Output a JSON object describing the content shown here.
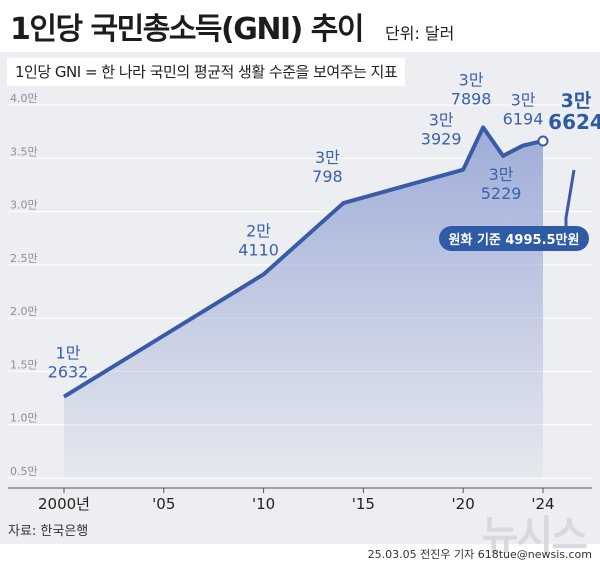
{
  "header": {
    "title": "1인당 국민총소득(GNI) 추이",
    "unit": "단위: 달러"
  },
  "subtitle": "1인당 GNI = 한 나라 국민의 평균적 생활 수준을 보여주는 지표",
  "footer": {
    "source": "자료: 한국은행",
    "credit": "25.03.05 전진우 기자 618tue@newsis.com",
    "logo": "뉴시스"
  },
  "colors": {
    "line": "#3a5ba8",
    "label": "#3a62b0",
    "highlight": "#2f5aa6",
    "panel": "#edeef1",
    "area_top": "#9aa9d6"
  },
  "chart_data": {
    "type": "area",
    "title": "1인당 국민총소득(GNI) 추이",
    "ylabel": "단위: 달러",
    "ylim": [
      5000,
      40000
    ],
    "yticks": [
      "4.0만",
      "3.5만",
      "3.0만",
      "2.5만",
      "2.0만",
      "1.5만",
      "1.0만",
      "0.5만"
    ],
    "ytick_values": [
      40000,
      35000,
      30000,
      25000,
      20000,
      15000,
      10000,
      5000
    ],
    "xticks": [
      {
        "x": 2000,
        "label": "2000년"
      },
      {
        "x": 2005,
        "label": "'05"
      },
      {
        "x": 2010,
        "label": "'10"
      },
      {
        "x": 2015,
        "label": "'15"
      },
      {
        "x": 2020,
        "label": "'20"
      },
      {
        "x": 2024,
        "label": "'24"
      }
    ],
    "series": [
      {
        "name": "1인당 GNI",
        "x": [
          2000,
          2010,
          2014,
          2020,
          2021,
          2022,
          2023,
          2024
        ],
        "values": [
          12632,
          24110,
          30798,
          33929,
          37898,
          35229,
          36194,
          36624
        ]
      }
    ],
    "annotations": [
      {
        "x": 2000,
        "line1": "1만",
        "line2": "2632"
      },
      {
        "x": 2010,
        "line1": "2만",
        "line2": "4110"
      },
      {
        "x": 2014,
        "line1": "3만",
        "line2": "798"
      },
      {
        "x": 2020,
        "line1": "3만",
        "line2": "3929"
      },
      {
        "x": 2021,
        "line1": "3만",
        "line2": "7898"
      },
      {
        "x": 2022,
        "line1": "3만",
        "line2": "5229"
      },
      {
        "x": 2023,
        "line1": "3만",
        "line2": "6194"
      },
      {
        "x": 2024,
        "line1": "3만",
        "line2": "6624"
      }
    ],
    "callout": "원화 기준 4995.5만원"
  }
}
